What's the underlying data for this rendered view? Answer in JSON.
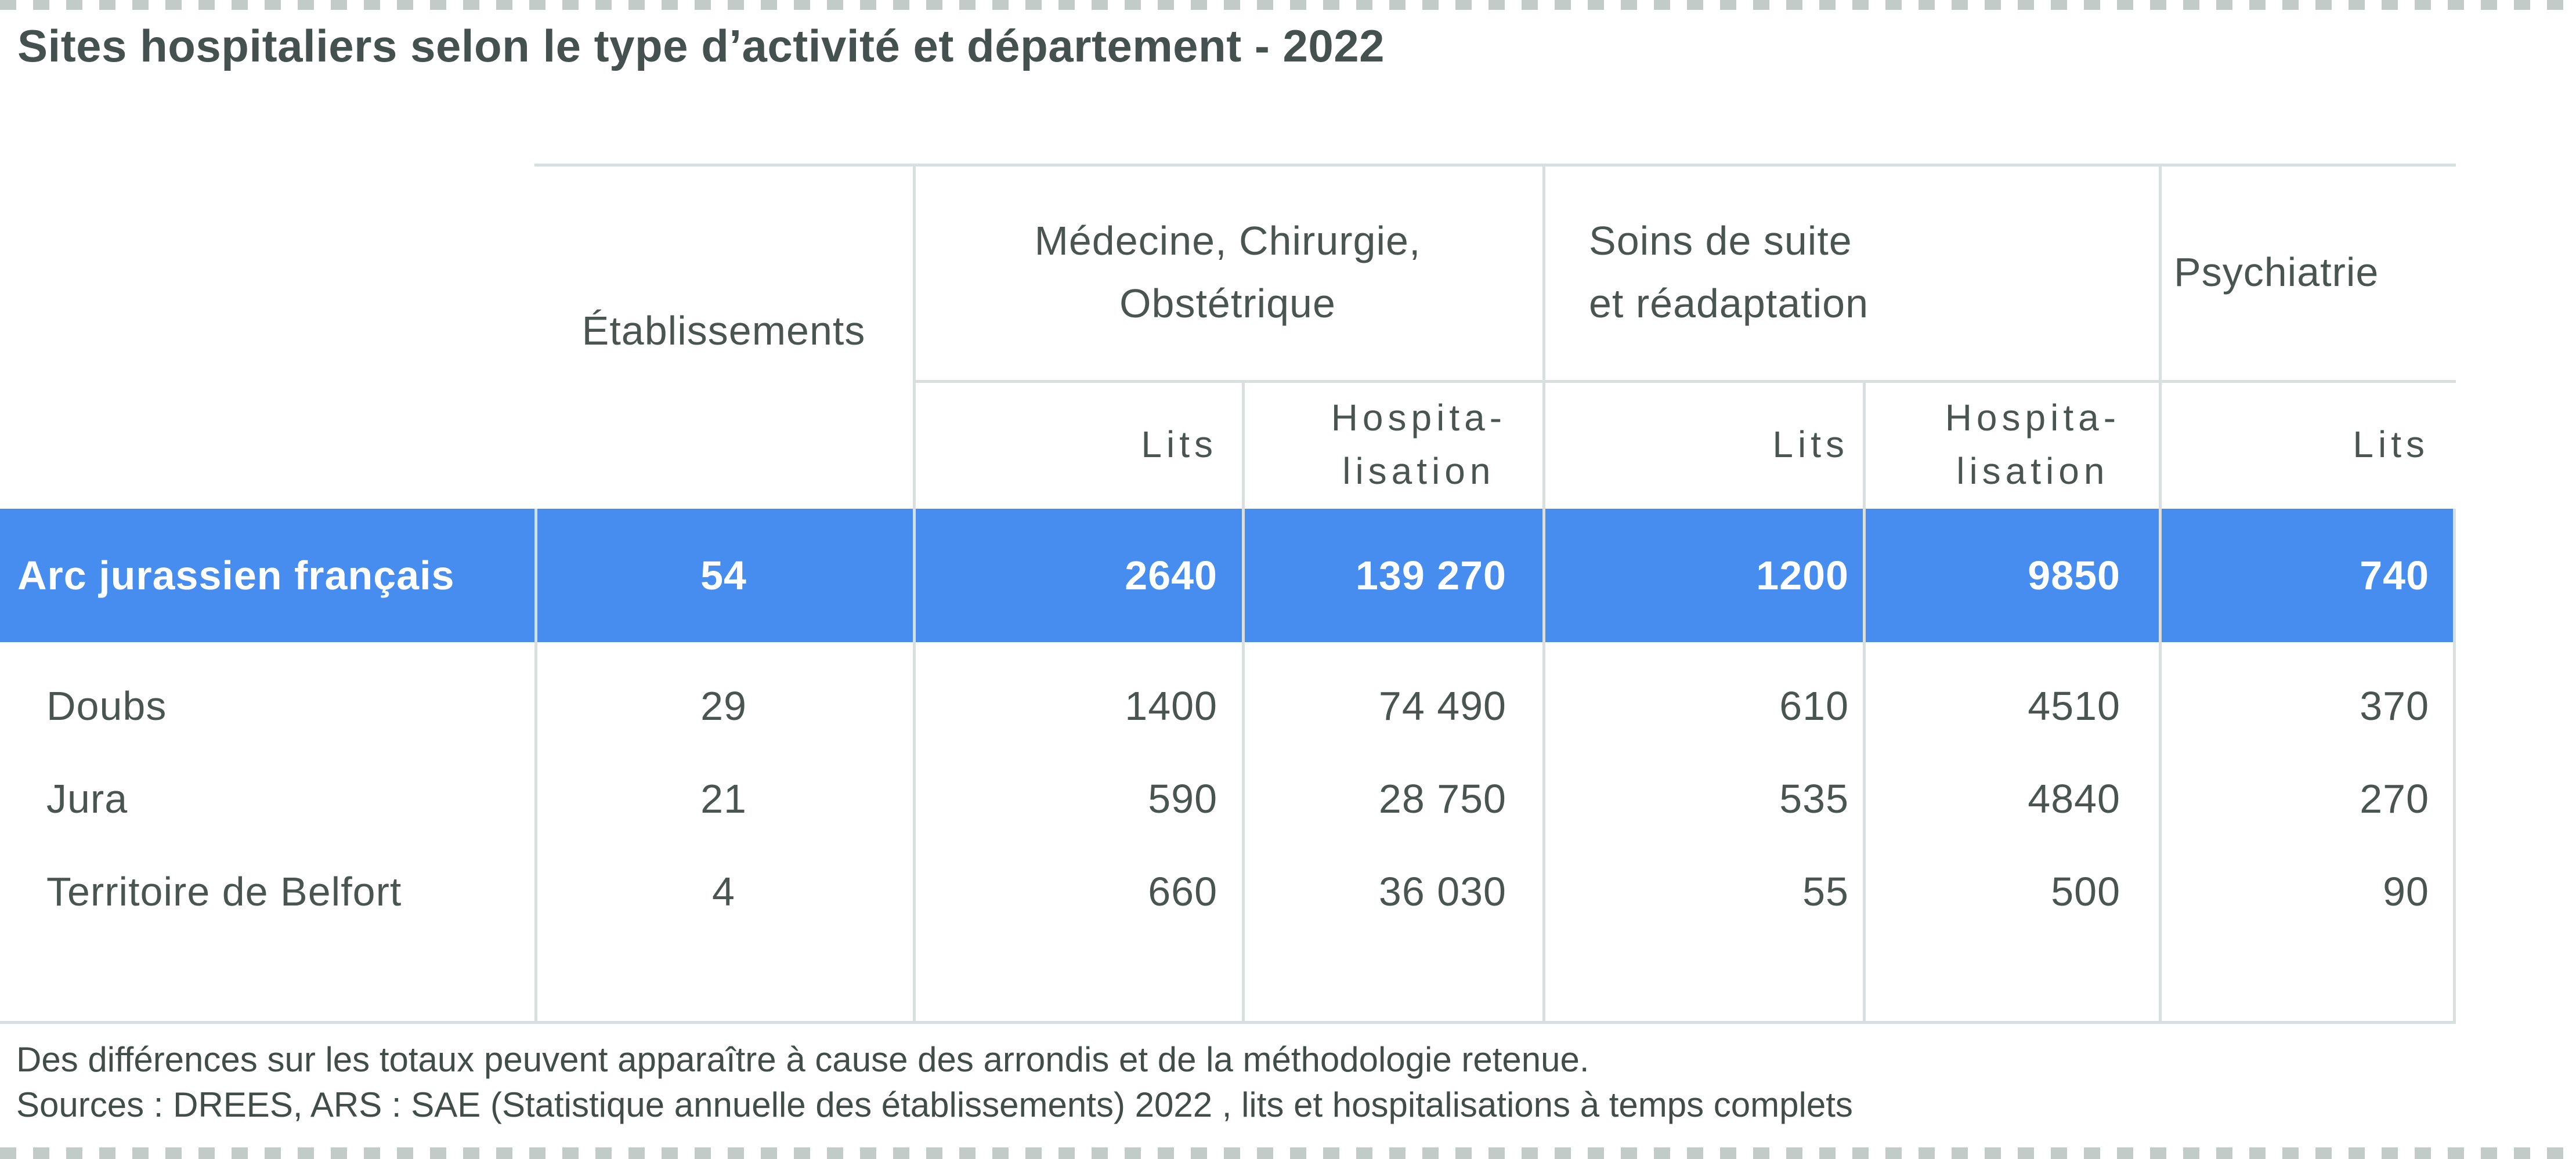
{
  "title": "Sites hospitaliers selon le type d’activité et département - 2022",
  "colors": {
    "highlight_blue": "#478DF0",
    "line_gray": "#D9DFDE",
    "dash_gray": "#C3CBC8",
    "text_dark": "#44514E",
    "text_body": "#4A5552",
    "text_note": "#424D4A",
    "text_white": "#FFFFFF"
  },
  "table": {
    "headers": {
      "etablissements": "Établissements",
      "mco_line1": "Médecine, Chirurgie,",
      "mco_line2": "Obstétrique",
      "ssr_line1": "Soins de suite",
      "ssr_line2": "et réadaptation",
      "psy": "Psychiatrie",
      "mco_lits": "Lits",
      "mco_hosp_line1": "Hospita-",
      "mco_hosp_line2": "lisation",
      "ssr_lits": "Lits",
      "ssr_hosp_line1": "Hospita-",
      "ssr_hosp_line2": "lisation",
      "psy_lits": "Lits"
    },
    "rows": [
      {
        "name": "Arc jurassien français",
        "etablissements": "54",
        "mco_lits": "2640",
        "mco_hosp": "139 270",
        "ssr_lits": "1200",
        "ssr_hosp": "9850",
        "psy_lits": "740"
      },
      {
        "name": "Doubs",
        "etablissements": "29",
        "mco_lits": "1400",
        "mco_hosp": "74 490",
        "ssr_lits": "610",
        "ssr_hosp": "4510",
        "psy_lits": "370"
      },
      {
        "name": "Jura",
        "etablissements": "21",
        "mco_lits": "590",
        "mco_hosp": "28 750",
        "ssr_lits": "535",
        "ssr_hosp": "4840",
        "psy_lits": "270"
      },
      {
        "name": "Territoire de Belfort",
        "etablissements": "4",
        "mco_lits": "660",
        "mco_hosp": "36 030",
        "ssr_lits": "55",
        "ssr_hosp": "500",
        "psy_lits": "90"
      }
    ]
  },
  "notes": {
    "line1": "Des différences sur les totaux peuvent apparaître à cause des arrondis et de la méthodologie retenue.",
    "line2": "Sources : DREES, ARS : SAE (Statistique annuelle des établissements) 2022 , lits et hospitalisations à temps complets"
  },
  "chart_data": {
    "type": "table",
    "title": "Sites hospitaliers selon le type d’activité et département - 2022",
    "column_groups": [
      "Établissements",
      "Médecine, Chirurgie, Obstétrique",
      "Soins de suite et réadaptation",
      "Psychiatrie"
    ],
    "columns": [
      "Établissements",
      "MCO Lits",
      "MCO Hospitalisation",
      "SSR Lits",
      "SSR Hospitalisation",
      "Psychiatrie Lits"
    ],
    "rows": [
      {
        "label": "Arc jurassien français",
        "values": [
          54,
          2640,
          139270,
          1200,
          9850,
          740
        ],
        "highlighted": true
      },
      {
        "label": "Doubs",
        "values": [
          29,
          1400,
          74490,
          610,
          4510,
          370
        ],
        "highlighted": false
      },
      {
        "label": "Jura",
        "values": [
          21,
          590,
          28750,
          535,
          4840,
          270
        ],
        "highlighted": false
      },
      {
        "label": "Territoire de Belfort",
        "values": [
          4,
          660,
          36030,
          55,
          500,
          90
        ],
        "highlighted": false
      }
    ],
    "notes": [
      "Des différences sur les totaux peuvent apparaître à cause des arrondis et de la méthodologie retenue.",
      "Sources : DREES, ARS : SAE (Statistique annuelle des établissements) 2022 , lits et hospitalisations à temps complets"
    ]
  }
}
